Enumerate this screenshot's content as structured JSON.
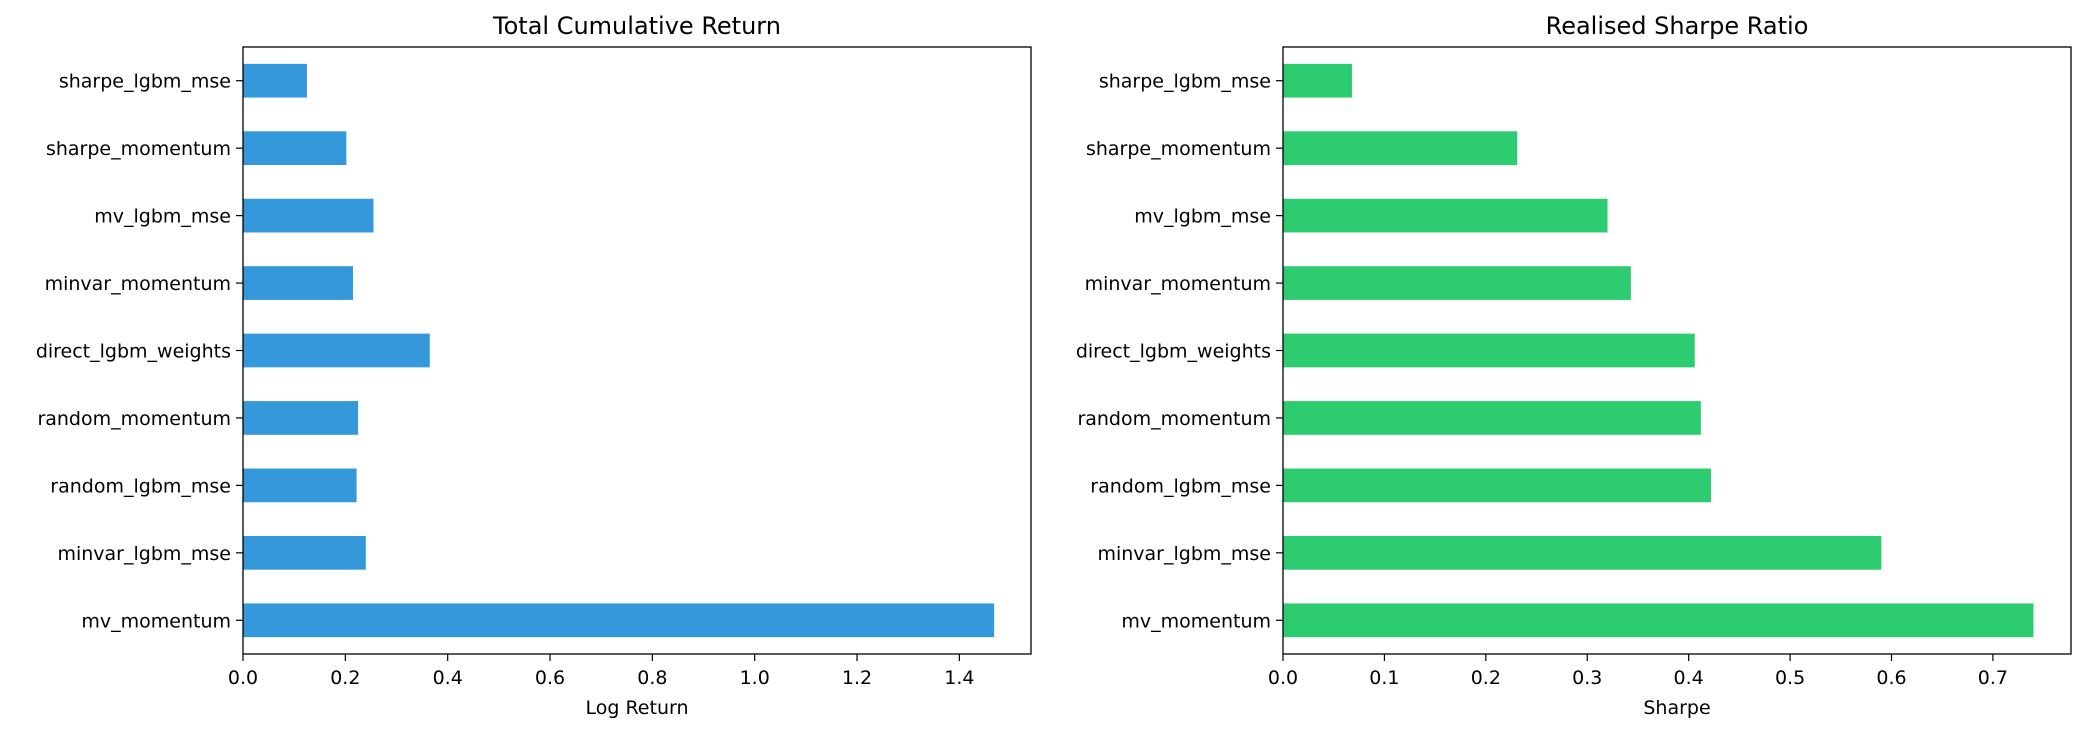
{
  "chart_data": [
    {
      "type": "bar",
      "orientation": "horizontal",
      "title": "Total Cumulative Return",
      "xlabel": "Log Return",
      "ylabel": "",
      "categories": [
        "mv_momentum",
        "minvar_lgbm_mse",
        "random_lgbm_mse",
        "random_momentum",
        "direct_lgbm_weights",
        "minvar_momentum",
        "mv_lgbm_mse",
        "sharpe_momentum",
        "sharpe_lgbm_mse"
      ],
      "values": [
        1.468,
        0.24,
        0.222,
        0.225,
        0.365,
        0.215,
        0.255,
        0.202,
        0.125
      ],
      "xlim": [
        0,
        1.54
      ],
      "xticks": [
        0.0,
        0.2,
        0.4,
        0.6,
        0.8,
        1.0,
        1.2,
        1.4
      ],
      "xtick_labels": [
        "0.0",
        "0.2",
        "0.4",
        "0.6",
        "0.8",
        "1.0",
        "1.2",
        "1.4"
      ],
      "color": "#3498db",
      "grid": false,
      "legend": "none"
    },
    {
      "type": "bar",
      "orientation": "horizontal",
      "title": "Realised Sharpe Ratio",
      "xlabel": "Sharpe",
      "ylabel": "",
      "categories": [
        "mv_momentum",
        "minvar_lgbm_mse",
        "random_lgbm_mse",
        "random_momentum",
        "direct_lgbm_weights",
        "minvar_momentum",
        "mv_lgbm_mse",
        "sharpe_momentum",
        "sharpe_lgbm_mse"
      ],
      "values": [
        0.74,
        0.59,
        0.422,
        0.412,
        0.406,
        0.343,
        0.32,
        0.231,
        0.068
      ],
      "xlim": [
        0,
        0.777
      ],
      "xticks": [
        0.0,
        0.1,
        0.2,
        0.3,
        0.4,
        0.5,
        0.6,
        0.7
      ],
      "xtick_labels": [
        "0.0",
        "0.1",
        "0.2",
        "0.3",
        "0.4",
        "0.5",
        "0.6",
        "0.7"
      ],
      "color": "#2ecc71",
      "grid": false,
      "legend": "none"
    }
  ]
}
